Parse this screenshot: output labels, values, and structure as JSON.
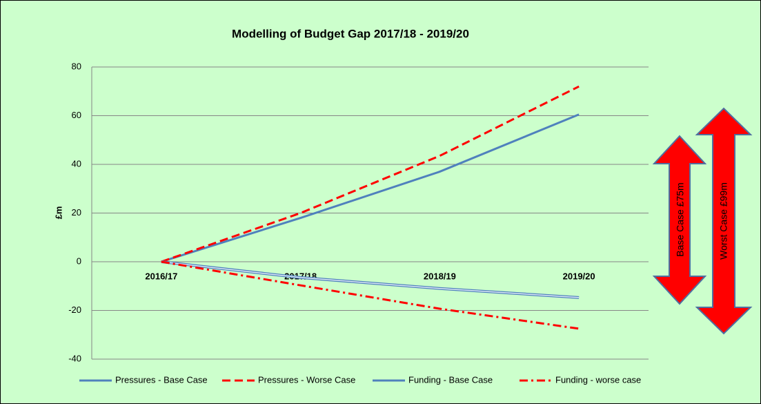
{
  "chart_data": {
    "type": "line",
    "title": "Modelling of Budget Gap 2017/18 - 2019/20",
    "y_label": "£m",
    "categories": [
      "2016/17",
      "2017/18",
      "2018/19",
      "2019/20"
    ],
    "series": [
      {
        "name": "Pressures - Base Case",
        "color": "#4f81bd",
        "style": "solid",
        "values": [
          0,
          18,
          37,
          60.5
        ]
      },
      {
        "name": "Pressures - Worse Case",
        "color": "#ff0000",
        "style": "dashed",
        "values": [
          0,
          20,
          43.5,
          72
        ]
      },
      {
        "name": "Funding - Base Case",
        "color": "#4f81bd",
        "style": "double",
        "values": [
          0,
          -6.5,
          -11,
          -14.7
        ]
      },
      {
        "name": "Funding - worse case",
        "color": "#ff0000",
        "style": "dashdot",
        "values": [
          0,
          -9.7,
          -19.3,
          -27.5
        ]
      }
    ],
    "ylim": [
      -40,
      80
    ],
    "yticks": [
      -40,
      -20,
      0,
      20,
      40,
      60,
      80
    ],
    "grid": true,
    "legend": "bottom",
    "annotations": [
      "Base Case £75m",
      "Worst Case £99m"
    ]
  }
}
